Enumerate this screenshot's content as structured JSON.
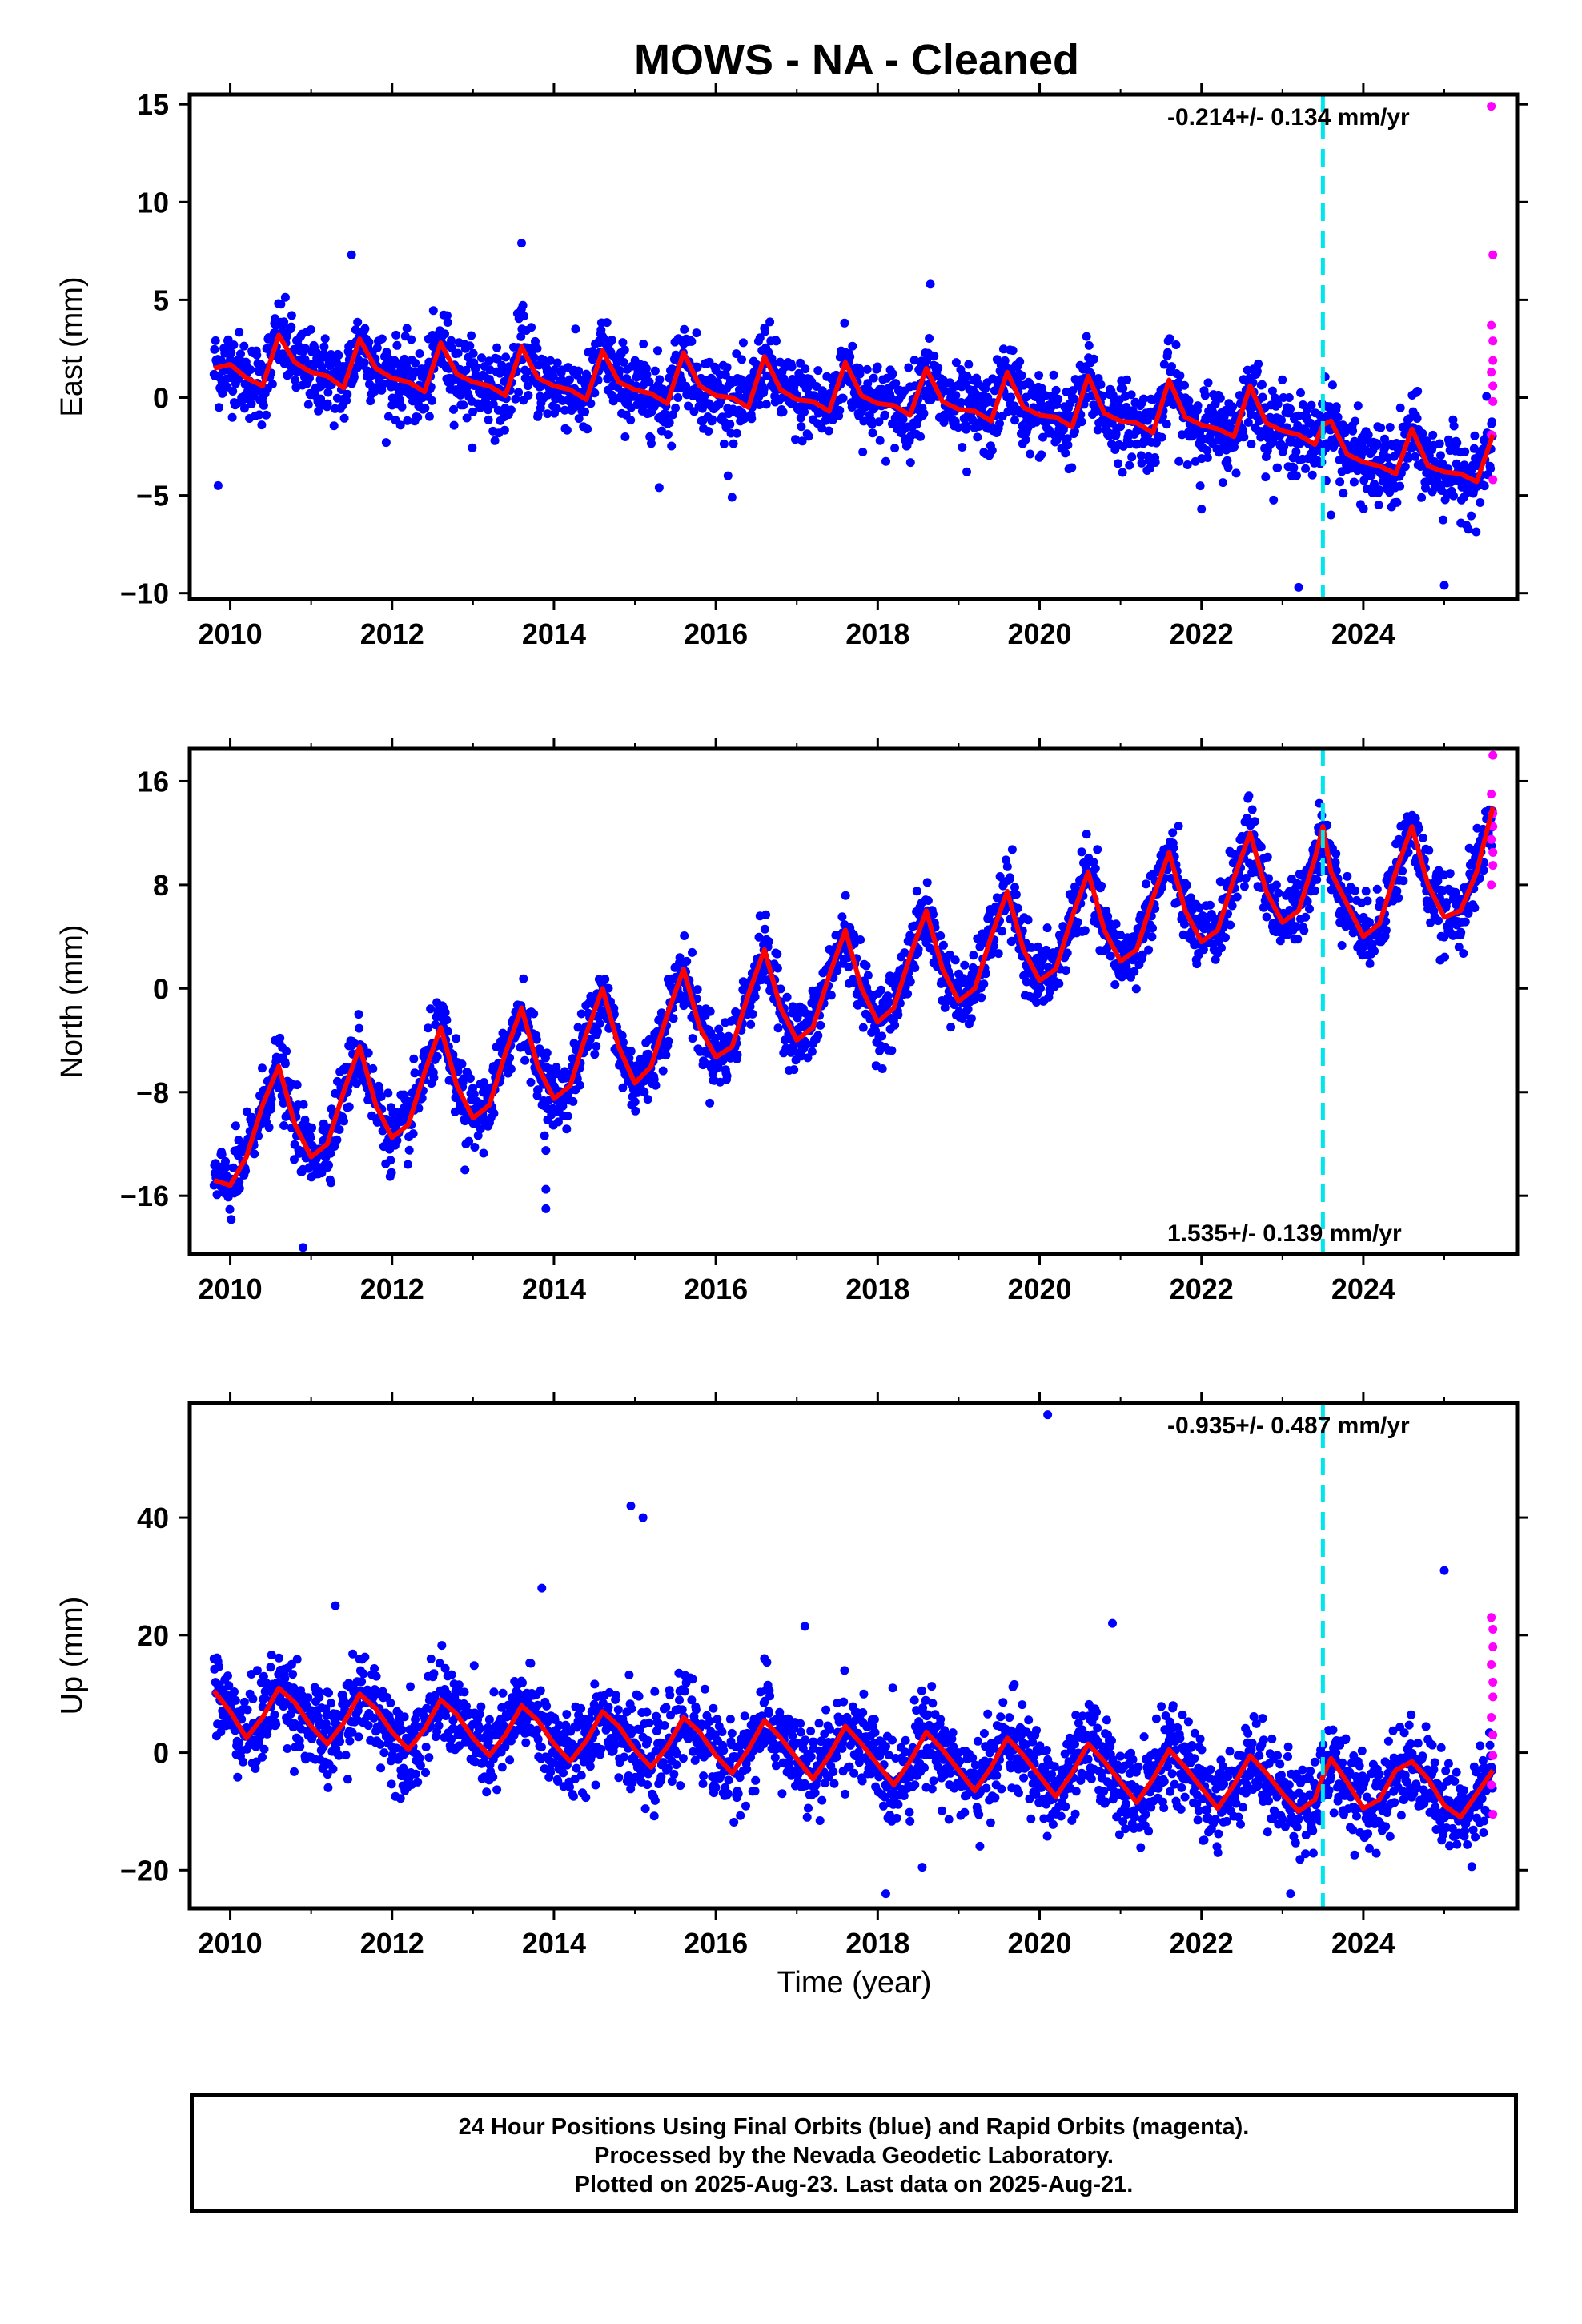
{
  "title": "MOWS  - NA - Cleaned",
  "xlabel": "Time (year)",
  "footer": {
    "line1": "24 Hour Positions Using Final Orbits (blue) and Rapid Orbits (magenta).",
    "line2": "Processed by the Nevada Geodetic Laboratory.",
    "line3": "Plotted on 2025-Aug-23. Last data on 2025-Aug-21."
  },
  "colors": {
    "final": "#0000ff",
    "rapid": "#ff00ff",
    "model": "#ff0000",
    "event": "#00e5ee"
  },
  "chart_data": [
    {
      "type": "scatter",
      "panel": "east",
      "ylabel": "East (mm)",
      "rate_text": "-0.214+/- 0.134 mm/yr",
      "rate_position": "top-right",
      "xlim": [
        2009.5,
        2025.9
      ],
      "ylim": [
        -10.3,
        15.5
      ],
      "x_ticks": [
        2010,
        2012,
        2014,
        2016,
        2018,
        2020,
        2022,
        2024
      ],
      "y_ticks": [
        -10,
        -5,
        0,
        5,
        10,
        15
      ],
      "y_tick_labels": [
        "−10",
        "−5",
        "0",
        "5",
        "10",
        "15"
      ],
      "event_line_x": 2023.5,
      "series_model": {
        "x": [
          2009.8,
          2010.0,
          2010.2,
          2010.4,
          2010.6,
          2010.8,
          2011.0,
          2011.2,
          2011.4,
          2011.6,
          2011.8,
          2012.0,
          2012.2,
          2012.4,
          2012.6,
          2012.8,
          2013.0,
          2013.2,
          2013.4,
          2013.6,
          2013.8,
          2014.0,
          2014.2,
          2014.4,
          2014.6,
          2014.8,
          2015.0,
          2015.2,
          2015.4,
          2015.6,
          2015.8,
          2016.0,
          2016.2,
          2016.4,
          2016.6,
          2016.8,
          2017.0,
          2017.2,
          2017.4,
          2017.6,
          2017.8,
          2018.0,
          2018.2,
          2018.4,
          2018.6,
          2018.8,
          2019.0,
          2019.2,
          2019.4,
          2019.6,
          2019.8,
          2020.0,
          2020.2,
          2020.4,
          2020.6,
          2020.8,
          2021.0,
          2021.2,
          2021.4,
          2021.6,
          2021.8,
          2022.0,
          2022.2,
          2022.4,
          2022.6,
          2022.8,
          2023.0,
          2023.2,
          2023.4,
          2023.5,
          2023.6,
          2023.8,
          2024.0,
          2024.2,
          2024.4,
          2024.6,
          2024.8,
          2025.0,
          2025.2,
          2025.4,
          2025.6
        ],
        "y": [
          1.5,
          1.7,
          1.0,
          0.6,
          3.2,
          1.8,
          1.3,
          1.1,
          0.5,
          3.0,
          1.5,
          1.0,
          0.8,
          0.3,
          2.8,
          1.2,
          0.8,
          0.6,
          0.1,
          2.6,
          1.0,
          0.6,
          0.4,
          -0.1,
          2.4,
          0.8,
          0.4,
          0.2,
          -0.3,
          2.3,
          0.6,
          0.1,
          0.0,
          -0.5,
          2.1,
          0.4,
          -0.1,
          -0.2,
          -0.7,
          1.8,
          0.1,
          -0.3,
          -0.4,
          -0.9,
          1.5,
          -0.2,
          -0.6,
          -0.7,
          -1.2,
          1.3,
          -0.5,
          -0.9,
          -1.0,
          -1.5,
          1.1,
          -0.8,
          -1.2,
          -1.3,
          -1.8,
          0.9,
          -1.0,
          -1.4,
          -1.6,
          -2.0,
          0.6,
          -1.3,
          -1.7,
          -1.9,
          -2.4,
          -1.4,
          -1.2,
          -2.9,
          -3.3,
          -3.5,
          -3.9,
          -1.6,
          -3.5,
          -3.8,
          -3.9,
          -4.3,
          -1.9
        ]
      },
      "outliers": [
        [
          2009.85,
          -4.5
        ],
        [
          2011.5,
          7.3
        ],
        [
          2013.6,
          7.9
        ],
        [
          2015.3,
          -4.6
        ],
        [
          2016.2,
          -5.1
        ],
        [
          2018.65,
          5.8
        ],
        [
          2019.1,
          -3.8
        ],
        [
          2022.0,
          -5.7
        ],
        [
          2023.2,
          -9.7
        ],
        [
          2023.6,
          -6.0
        ],
        [
          2025.0,
          -9.6
        ]
      ],
      "rapid_points": [
        [
          2025.58,
          14.9
        ],
        [
          2025.6,
          7.3
        ],
        [
          2025.58,
          3.7
        ],
        [
          2025.6,
          2.9
        ],
        [
          2025.6,
          1.9
        ],
        [
          2025.58,
          1.3
        ],
        [
          2025.6,
          0.6
        ],
        [
          2025.6,
          -0.2
        ],
        [
          2025.58,
          -1.9
        ],
        [
          2025.6,
          -4.2
        ]
      ],
      "scatter_sigma": 1.0
    },
    {
      "type": "scatter",
      "panel": "north",
      "ylabel": "North (mm)",
      "rate_text": "1.535+/- 0.139 mm/yr",
      "rate_position": "bottom-right",
      "xlim": [
        2009.5,
        2025.9
      ],
      "ylim": [
        -20.5,
        18.5
      ],
      "x_ticks": [
        2010,
        2012,
        2014,
        2016,
        2018,
        2020,
        2022,
        2024
      ],
      "y_ticks": [
        -16,
        -8,
        0,
        8,
        16
      ],
      "y_tick_labels": [
        "−16",
        "−8",
        "0",
        "8",
        "16"
      ],
      "event_line_x": 2023.5,
      "series_model": {
        "x": [
          2009.8,
          2010.0,
          2010.2,
          2010.4,
          2010.6,
          2010.8,
          2011.0,
          2011.2,
          2011.4,
          2011.6,
          2011.8,
          2012.0,
          2012.2,
          2012.4,
          2012.6,
          2012.8,
          2013.0,
          2013.2,
          2013.4,
          2013.6,
          2013.8,
          2014.0,
          2014.2,
          2014.4,
          2014.6,
          2014.8,
          2015.0,
          2015.2,
          2015.4,
          2015.6,
          2015.8,
          2016.0,
          2016.2,
          2016.4,
          2016.6,
          2016.8,
          2017.0,
          2017.2,
          2017.4,
          2017.6,
          2017.8,
          2018.0,
          2018.2,
          2018.4,
          2018.6,
          2018.8,
          2019.0,
          2019.2,
          2019.4,
          2019.6,
          2019.8,
          2020.0,
          2020.2,
          2020.4,
          2020.6,
          2020.8,
          2021.0,
          2021.2,
          2021.4,
          2021.6,
          2021.8,
          2022.0,
          2022.2,
          2022.4,
          2022.6,
          2022.8,
          2023.0,
          2023.2,
          2023.4,
          2023.5,
          2023.6,
          2023.8,
          2024.0,
          2024.2,
          2024.4,
          2024.6,
          2024.8,
          2025.0,
          2025.2,
          2025.4,
          2025.6
        ],
        "y": [
          -14.8,
          -15.2,
          -13.0,
          -9.0,
          -6.0,
          -10.5,
          -13.0,
          -12.0,
          -8.0,
          -4.5,
          -9.0,
          -11.5,
          -10.5,
          -6.5,
          -3.0,
          -7.5,
          -10.0,
          -9.0,
          -5.0,
          -1.5,
          -6.0,
          -8.5,
          -7.5,
          -3.5,
          0.0,
          -4.5,
          -7.3,
          -6.0,
          -2.0,
          1.5,
          -3.0,
          -5.3,
          -4.5,
          -0.5,
          3.0,
          -1.5,
          -4.0,
          -3.0,
          1.0,
          4.5,
          0.0,
          -2.6,
          -1.5,
          2.5,
          6.0,
          1.5,
          -1.0,
          0.0,
          4.0,
          7.5,
          3.0,
          0.6,
          1.5,
          5.5,
          9.0,
          4.5,
          2.1,
          3.0,
          7.0,
          10.5,
          6.0,
          3.6,
          4.5,
          8.5,
          12.0,
          7.5,
          5.1,
          6.0,
          10.0,
          12.5,
          9.0,
          6.5,
          4.0,
          5.0,
          9.0,
          12.5,
          8.0,
          5.5,
          6.0,
          9.0,
          14.0
        ]
      },
      "outliers": [
        [
          2010.9,
          -20.0
        ],
        [
          2013.9,
          -15.5
        ],
        [
          2013.9,
          -17.0
        ],
        [
          2013.9,
          -12.5
        ],
        [
          2012.9,
          -14.0
        ]
      ],
      "rapid_points": [
        [
          2025.6,
          18.0
        ],
        [
          2025.58,
          15.0
        ],
        [
          2025.6,
          13.5
        ],
        [
          2025.6,
          12.5
        ],
        [
          2025.58,
          11.5
        ],
        [
          2025.6,
          10.5
        ],
        [
          2025.6,
          9.5
        ],
        [
          2025.58,
          8.0
        ]
      ],
      "scatter_sigma": 1.3
    },
    {
      "type": "scatter",
      "panel": "up",
      "ylabel": "Up (mm)",
      "rate_text": "-0.935+/- 0.487 mm/yr",
      "rate_position": "top-right",
      "xlim": [
        2009.5,
        2025.9
      ],
      "ylim": [
        -26.5,
        59.5
      ],
      "x_ticks": [
        2010,
        2012,
        2014,
        2016,
        2018,
        2020,
        2022,
        2024
      ],
      "y_ticks": [
        -20,
        0,
        20,
        40
      ],
      "y_tick_labels": [
        "−20",
        "0",
        "20",
        "40"
      ],
      "event_line_x": 2023.5,
      "series_model": {
        "x": [
          2009.8,
          2010.0,
          2010.2,
          2010.4,
          2010.6,
          2010.8,
          2011.0,
          2011.2,
          2011.4,
          2011.6,
          2011.8,
          2012.0,
          2012.2,
          2012.4,
          2012.6,
          2012.8,
          2013.0,
          2013.2,
          2013.4,
          2013.6,
          2013.8,
          2014.0,
          2014.2,
          2014.4,
          2014.6,
          2014.8,
          2015.0,
          2015.2,
          2015.4,
          2015.6,
          2015.8,
          2016.0,
          2016.2,
          2016.4,
          2016.6,
          2016.8,
          2017.0,
          2017.2,
          2017.4,
          2017.6,
          2017.8,
          2018.0,
          2018.2,
          2018.4,
          2018.6,
          2018.8,
          2019.0,
          2019.2,
          2019.4,
          2019.6,
          2019.8,
          2020.0,
          2020.2,
          2020.4,
          2020.6,
          2020.8,
          2021.0,
          2021.2,
          2021.4,
          2021.6,
          2021.8,
          2022.0,
          2022.2,
          2022.4,
          2022.6,
          2022.8,
          2023.0,
          2023.2,
          2023.4,
          2023.5,
          2023.6,
          2023.8,
          2024.0,
          2024.2,
          2024.4,
          2024.6,
          2024.8,
          2025.0,
          2025.2,
          2025.4,
          2025.6
        ],
        "y": [
          10.5,
          7.0,
          2.5,
          6.0,
          11.0,
          8.5,
          4.5,
          1.5,
          5.0,
          10.0,
          7.5,
          3.5,
          0.5,
          4.0,
          9.0,
          6.5,
          2.5,
          -0.5,
          3.0,
          8.0,
          5.5,
          1.5,
          -1.5,
          2.0,
          7.0,
          4.5,
          0.5,
          -2.5,
          1.0,
          6.0,
          3.5,
          -0.5,
          -3.5,
          0.5,
          5.5,
          2.5,
          -1.0,
          -4.5,
          -0.5,
          4.5,
          1.5,
          -2.0,
          -5.5,
          -1.5,
          3.5,
          0.5,
          -3.0,
          -6.5,
          -2.5,
          2.5,
          -0.5,
          -4.0,
          -7.5,
          -3.5,
          1.5,
          -1.5,
          -5.0,
          -8.5,
          -4.5,
          0.5,
          -2.5,
          -6.0,
          -9.5,
          -5.5,
          -0.5,
          -3.5,
          -7.0,
          -10.0,
          -8.0,
          -4.0,
          -1.0,
          -5.0,
          -9.5,
          -8.0,
          -3.0,
          -1.5,
          -4.5,
          -9.0,
          -11.0,
          -7.0,
          -3.0
        ]
      },
      "outliers": [
        [
          2014.95,
          42.0
        ],
        [
          2015.1,
          40.0
        ],
        [
          2020.1,
          57.5
        ],
        [
          2013.85,
          28.0
        ],
        [
          2011.3,
          25.0
        ],
        [
          2020.9,
          22.0
        ],
        [
          2017.1,
          21.5
        ],
        [
          2025.0,
          31.0
        ],
        [
          2018.1,
          -24.0
        ],
        [
          2023.1,
          -24.0
        ],
        [
          2018.55,
          -19.5
        ]
      ],
      "rapid_points": [
        [
          2025.58,
          23.0
        ],
        [
          2025.6,
          21.0
        ],
        [
          2025.6,
          18.0
        ],
        [
          2025.58,
          15.0
        ],
        [
          2025.6,
          12.0
        ],
        [
          2025.6,
          9.5
        ],
        [
          2025.58,
          6.0
        ],
        [
          2025.6,
          3.0
        ],
        [
          2025.6,
          -0.5
        ],
        [
          2025.58,
          -5.5
        ],
        [
          2025.6,
          -10.5
        ]
      ],
      "scatter_sigma": 3.8
    }
  ]
}
